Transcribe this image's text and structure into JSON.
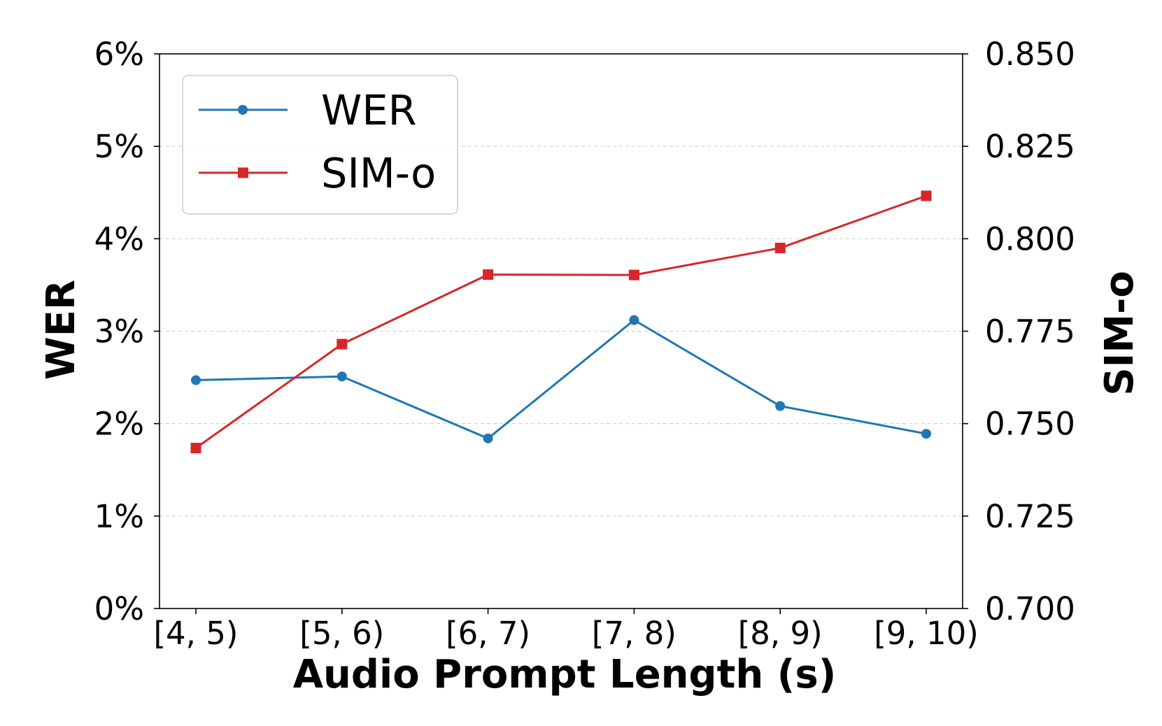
{
  "chart_data": {
    "type": "line",
    "xlabel": "Audio Prompt Length (s)",
    "categories": [
      "[4, 5)",
      "[5, 6)",
      "[6, 7)",
      "[7, 8)",
      "[8, 9)",
      "[9, 10)"
    ],
    "y_left": {
      "label": "WER",
      "ylim": [
        0,
        6
      ],
      "ticks": [
        0,
        1,
        2,
        3,
        4,
        5,
        6
      ],
      "tick_labels": [
        "0%",
        "1%",
        "2%",
        "3%",
        "4%",
        "5%",
        "6%"
      ]
    },
    "y_right": {
      "label": "SIM-o",
      "ylim": [
        0.7,
        0.85
      ],
      "ticks": [
        0.7,
        0.725,
        0.75,
        0.775,
        0.8,
        0.825,
        0.85
      ],
      "tick_labels": [
        "0.700",
        "0.725",
        "0.750",
        "0.775",
        "0.800",
        "0.825",
        "0.850"
      ]
    },
    "series": [
      {
        "name": "WER",
        "axis": "left",
        "color": "#1f77b4",
        "marker": "circle",
        "values": [
          2.47,
          2.51,
          1.84,
          3.12,
          2.19,
          1.89
        ]
      },
      {
        "name": "SIM-o",
        "axis": "right",
        "color": "#d62728",
        "marker": "square",
        "values": [
          0.7434,
          0.7715,
          0.7903,
          0.7902,
          0.7975,
          0.8116
        ]
      }
    ],
    "grid": "horizontal dashed",
    "legend": "upper-left"
  }
}
